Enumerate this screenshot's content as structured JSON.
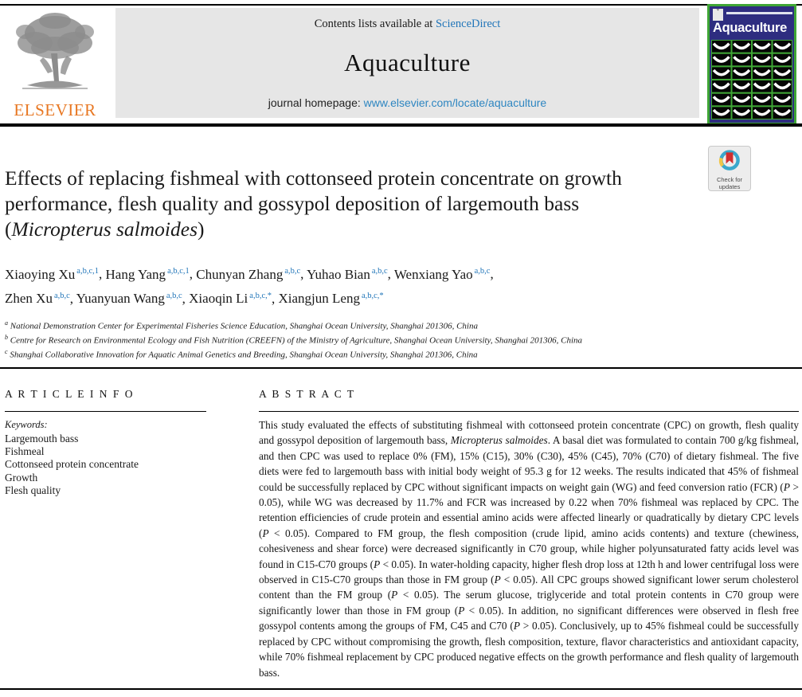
{
  "header": {
    "contents_prefix": "Contents lists available at ",
    "sciencedirect_link": "ScienceDirect",
    "journal_title": "Aquaculture",
    "homepage_prefix": "journal homepage: ",
    "homepage_url": "www.elsevier.com/locate/aquaculture",
    "elsevier_wordmark": "ELSEVIER",
    "cover_title": "Aquaculture"
  },
  "badge": {
    "line1": "Check for",
    "line2": "updates"
  },
  "title_segments": [
    {
      "text": "Effects of replacing fishmeal with cottonseed protein concentrate on growth"
    },
    {
      "br": true
    },
    {
      "text": "performance, flesh quality and gossypol deposition of largemouth bass"
    },
    {
      "br": true
    },
    {
      "text": "("
    },
    {
      "text": "Micropterus salmoides",
      "italic": true
    },
    {
      "text": ")"
    }
  ],
  "authors": [
    {
      "name": "Xiaoying Xu",
      "sup": "a,b,c,1"
    },
    {
      "name": "Hang Yang",
      "sup": "a,b,c,1"
    },
    {
      "name": "Chunyan Zhang",
      "sup": "a,b,c"
    },
    {
      "name": "Yuhao Bian",
      "sup": "a,b,c"
    },
    {
      "name": "Wenxiang Yao",
      "sup": "a,b,c",
      "br_after": true
    },
    {
      "name": "Zhen Xu",
      "sup": "a,b,c"
    },
    {
      "name": "Yuanyuan Wang",
      "sup": "a,b,c"
    },
    {
      "name": "Xiaoqin Li",
      "sup": "a,b,c,*"
    },
    {
      "name": "Xiangjun Leng",
      "sup": "a,b,c,*"
    }
  ],
  "affiliations": [
    {
      "sup": "a",
      "text": "National Demonstration Center for Experimental Fisheries Science Education, Shanghai Ocean University, Shanghai 201306, China"
    },
    {
      "sup": "b",
      "text": "Centre for Research on Environmental Ecology and Fish Nutrition (CREEFN) of the Ministry of Agriculture, Shanghai Ocean University, Shanghai 201306, China"
    },
    {
      "sup": "c",
      "text": "Shanghai Collaborative Innovation for Aquatic Animal Genetics and Breeding, Shanghai Ocean University, Shanghai 201306, China"
    }
  ],
  "article_info": {
    "heading": "A R T I C L E  I N F O",
    "keywords_label": "Keywords:",
    "keywords": [
      "Largemouth bass",
      "Fishmeal",
      "Cottonseed protein concentrate",
      "Growth",
      "Flesh quality"
    ]
  },
  "abstract": {
    "heading": "A B S T R A C T",
    "segments": [
      {
        "text": "This study evaluated the effects of substituting fishmeal with cottonseed protein concentrate (CPC) on growth, flesh quality and gossypol deposition of largemouth bass, "
      },
      {
        "text": "Micropterus salmoides",
        "italic": true
      },
      {
        "text": ". A basal diet was formulated to contain 700 g/kg fishmeal, and then CPC was used to replace 0% (FM), 15% (C15), 30% (C30), 45% (C45), 70% (C70) of dietary fishmeal. The five diets were fed to largemouth bass with initial body weight of 95.3 g for 12 weeks. The results indicated that 45% of fishmeal could be successfully replaced by CPC without significant impacts on weight gain (WG) and feed conversion ratio (FCR) ("
      },
      {
        "text": "P",
        "italic": true
      },
      {
        "text": " > 0.05), while WG was decreased by 11.7% and FCR was increased by 0.22 when 70% fishmeal was replaced by CPC. The retention efficiencies of crude protein and essential amino acids were affected linearly or quadratically by dietary CPC levels ("
      },
      {
        "text": "P",
        "italic": true
      },
      {
        "text": " < 0.05). Compared to FM group, the flesh composition (crude lipid, amino acids contents) and texture (chewiness, cohesiveness and shear force) were decreased significantly in C70 group, while higher polyunsaturated fatty acids level was found in C15-C70 groups ("
      },
      {
        "text": "P",
        "italic": true
      },
      {
        "text": " < 0.05). In water-holding capacity, higher flesh drop loss at 12th h and lower centrifugal loss were observed in C15-C70 groups than those in FM group ("
      },
      {
        "text": "P",
        "italic": true
      },
      {
        "text": " < 0.05). All CPC groups showed significant lower serum cholesterol content than the FM group ("
      },
      {
        "text": "P",
        "italic": true
      },
      {
        "text": " < 0.05). The serum glucose, triglyceride and total protein contents in C70 group were significantly lower than those in FM group ("
      },
      {
        "text": "P",
        "italic": true
      },
      {
        "text": " < 0.05). In addition, no significant differences were observed in flesh free gossypol contents among the groups of FM, C45 and C70 ("
      },
      {
        "text": "P",
        "italic": true
      },
      {
        "text": " > 0.05). Conclusively, up to 45% fishmeal could be successfully replaced by CPC without compromising the growth, flesh composition, texture, flavor characteristics and antioxidant capacity, while 70% fishmeal replacement by CPC produced negative effects on the growth performance and flesh quality of largemouth bass."
      }
    ]
  },
  "colors": {
    "link_blue": "#2276b9",
    "elsevier_orange": "#e87722",
    "cover_blue": "#2e2d80",
    "cover_green": "#3fa535",
    "masthead_gray": "#e6e6e6"
  }
}
